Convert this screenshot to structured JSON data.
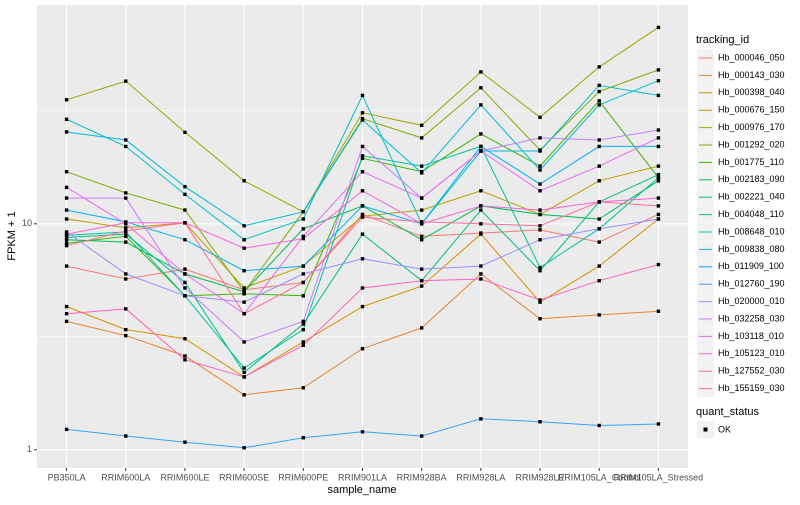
{
  "chart_data": {
    "type": "line",
    "x_label": "sample_name",
    "y_label": "FPKM + 1",
    "categories": [
      "PB350LA",
      "RRIM600LA",
      "RRIM600LE",
      "RRIM600SE",
      "RRIM600PE",
      "RRIM901LA",
      "RRIM928BA",
      "RRIM928LA",
      "RRIM928LE",
      "RRIM105LA_Control",
      "RRIM105LA_Stressed"
    ],
    "log_scale": true,
    "grid": true,
    "ylim": [
      0.83,
      93
    ],
    "yticks": [
      1,
      10
    ],
    "legend_title": "tracking_id",
    "series": [
      {
        "name": "Hb_000046_050",
        "color": "#F8766D",
        "values": [
          6.5,
          5.7,
          6.3,
          5.1,
          5.5,
          11,
          8.8,
          9.1,
          9.4,
          8.3,
          11
        ]
      },
      {
        "name": "Hb_000143_030",
        "color": "#EA8331",
        "values": [
          3.7,
          3.2,
          2.6,
          1.75,
          1.88,
          2.8,
          3.46,
          6.0,
          3.8,
          3.95,
          4.1
        ]
      },
      {
        "name": "Hb_000398_040",
        "color": "#D89000",
        "values": [
          4.3,
          3.4,
          3.1,
          2.1,
          3.0,
          4.3,
          5.3,
          9.0,
          4.5,
          6.5,
          10.5
        ]
      },
      {
        "name": "Hb_000676_150",
        "color": "#C09B00",
        "values": [
          10.5,
          9.6,
          10.1,
          5.2,
          6.5,
          10.8,
          11.5,
          14,
          11,
          15.5,
          18
        ]
      },
      {
        "name": "Hb_000976_170",
        "color": "#A3A500",
        "values": [
          35.4,
          42.8,
          25.4,
          15.5,
          11.3,
          31,
          27.3,
          47,
          29.6,
          49.5,
          74
        ]
      },
      {
        "name": "Hb_001292_020",
        "color": "#7CAE00",
        "values": [
          17,
          13.7,
          11.5,
          5,
          11.3,
          29.2,
          24,
          40,
          21.2,
          38.5,
          48
        ]
      },
      {
        "name": "Hb_001775_110",
        "color": "#39B600",
        "values": [
          8.2,
          8.8,
          4.8,
          4.9,
          4.8,
          19.5,
          17,
          25,
          18,
          35,
          16
        ]
      },
      {
        "name": "Hb_002183_090",
        "color": "#00BB4E",
        "values": [
          8.5,
          8.3,
          6.0,
          5.0,
          9.5,
          12,
          8.5,
          12,
          11,
          10.5,
          15.5
        ]
      },
      {
        "name": "Hb_002221_040",
        "color": "#00BF7D",
        "values": [
          8.7,
          9.0,
          5.5,
          2.2,
          3.6,
          9.0,
          5.6,
          11.5,
          6.2,
          12.5,
          16.5
        ]
      },
      {
        "name": "Hb_004048_110",
        "color": "#00C1A3",
        "values": [
          8.9,
          9.2,
          4.8,
          2.3,
          3.4,
          20,
          18,
          22,
          6.4,
          9.5,
          16
        ]
      },
      {
        "name": "Hb_008648_010",
        "color": "#00BFC4",
        "values": [
          29,
          22,
          13.5,
          8.5,
          10.5,
          37,
          10,
          21,
          21,
          41,
          37
        ]
      },
      {
        "name": "Hb_009838_080",
        "color": "#00BAE0",
        "values": [
          25.5,
          23.5,
          14.6,
          9.8,
          11.3,
          28.8,
          16.8,
          33.6,
          17.3,
          33.6,
          43
        ]
      },
      {
        "name": "Hb_011909_100",
        "color": "#00B0F6",
        "values": [
          11.5,
          10.2,
          8.5,
          6.2,
          6.5,
          12,
          10,
          22,
          15,
          22,
          22
        ]
      },
      {
        "name": "Hb_012760_190",
        "color": "#35A2FF",
        "values": [
          1.23,
          1.15,
          1.08,
          1.02,
          1.13,
          1.2,
          1.15,
          1.37,
          1.33,
          1.28,
          1.3
        ]
      },
      {
        "name": "Hb_020000_010",
        "color": "#9590FF",
        "values": [
          9.2,
          6.0,
          4.8,
          4.5,
          6.0,
          7.0,
          6.3,
          6.5,
          8.5,
          9.5,
          10.5
        ]
      },
      {
        "name": "Hb_032258_030",
        "color": "#C77CFF",
        "values": [
          13,
          13,
          5.2,
          3.0,
          3.7,
          22,
          13,
          21,
          24,
          23.5,
          26
        ]
      },
      {
        "name": "Hb_103118_010",
        "color": "#E76BF3",
        "values": [
          14.5,
          10,
          6.0,
          4.0,
          8.8,
          17,
          13,
          21,
          14,
          18,
          24
        ]
      },
      {
        "name": "Hb_105123_010",
        "color": "#FA62DB",
        "values": [
          9.0,
          10.1,
          10.1,
          7.8,
          8.6,
          14,
          10,
          12,
          11.5,
          12.5,
          13
        ]
      },
      {
        "name": "Hb_127552_030",
        "color": "#FF62BC",
        "values": [
          4.0,
          4.2,
          2.5,
          2.1,
          2.9,
          5.2,
          5.6,
          5.7,
          4.6,
          5.6,
          6.6
        ]
      },
      {
        "name": "Hb_155159_030",
        "color": "#FF6C91",
        "values": [
          8.0,
          9.3,
          10.1,
          4.0,
          5.5,
          10.7,
          10.2,
          10.0,
          9.8,
          12.5,
          12
        ]
      }
    ],
    "point_legend_title": "quant_status",
    "point_legend_label": "OK"
  }
}
